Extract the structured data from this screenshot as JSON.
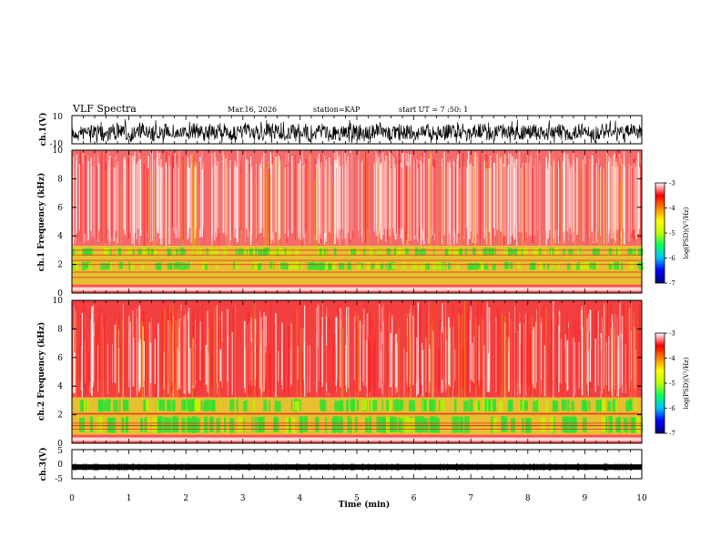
{
  "header": {
    "title": "VLF Spectra",
    "date": "Mar.16, 2026",
    "station": "station=KAP",
    "start": "start UT =  7 :50: 1"
  },
  "chart_data": {
    "type": "heatmap",
    "title": "VLF Spectra",
    "xlabel": "Time (min)",
    "xlim": [
      0,
      10
    ],
    "xticks": [
      "0",
      "1",
      "2",
      "3",
      "4",
      "5",
      "6",
      "7",
      "8",
      "9",
      "10"
    ],
    "panels": [
      {
        "id": "ch1-waveform",
        "type": "line",
        "ylabel": "ch.1(V)",
        "ylim": [
          -10,
          10
        ],
        "yticks": [
          "10",
          "-10"
        ],
        "note": "dense noisy waveform filling the range"
      },
      {
        "id": "ch1-spectrogram",
        "type": "heatmap",
        "ylabel": "ch.1\nFrequency (kHz)",
        "ylim": [
          0,
          10
        ],
        "yticks": [
          "10",
          "8",
          "6",
          "4",
          "2",
          "0"
        ],
        "bands_khz": [
          {
            "from": 0.0,
            "to": 0.6,
            "level": "high"
          },
          {
            "from": 0.6,
            "to": 3.3,
            "level": "low"
          },
          {
            "from": 3.3,
            "to": 10,
            "level": "high"
          }
        ]
      },
      {
        "id": "ch2-spectrogram",
        "type": "heatmap",
        "ylabel": "ch.2\nFrequency (kHz)",
        "ylim": [
          0,
          10
        ],
        "yticks": [
          "10",
          "8",
          "6",
          "4",
          "2",
          "0"
        ],
        "bands_khz": [
          {
            "from": 0.0,
            "to": 0.6,
            "level": "high"
          },
          {
            "from": 0.6,
            "to": 3.2,
            "level": "low"
          },
          {
            "from": 3.2,
            "to": 10,
            "level": "high"
          }
        ]
      },
      {
        "id": "ch3-waveform",
        "type": "line",
        "ylabel": "ch.3(V)",
        "ylim": [
          -5,
          5
        ],
        "yticks": [
          "5",
          "0",
          "-5"
        ],
        "level": -1
      }
    ],
    "colorbar": {
      "label": "log(PSD)(V²/Hz)",
      "range": [
        -7,
        -3
      ],
      "ticks": [
        "-3",
        "-4",
        "-5",
        "-6",
        "-7"
      ],
      "colors": [
        "#000080",
        "#0000ff",
        "#00c0ff",
        "#00ff60",
        "#c0ff00",
        "#ffff00",
        "#ff8000",
        "#ff0000",
        "#ffffff"
      ]
    }
  }
}
